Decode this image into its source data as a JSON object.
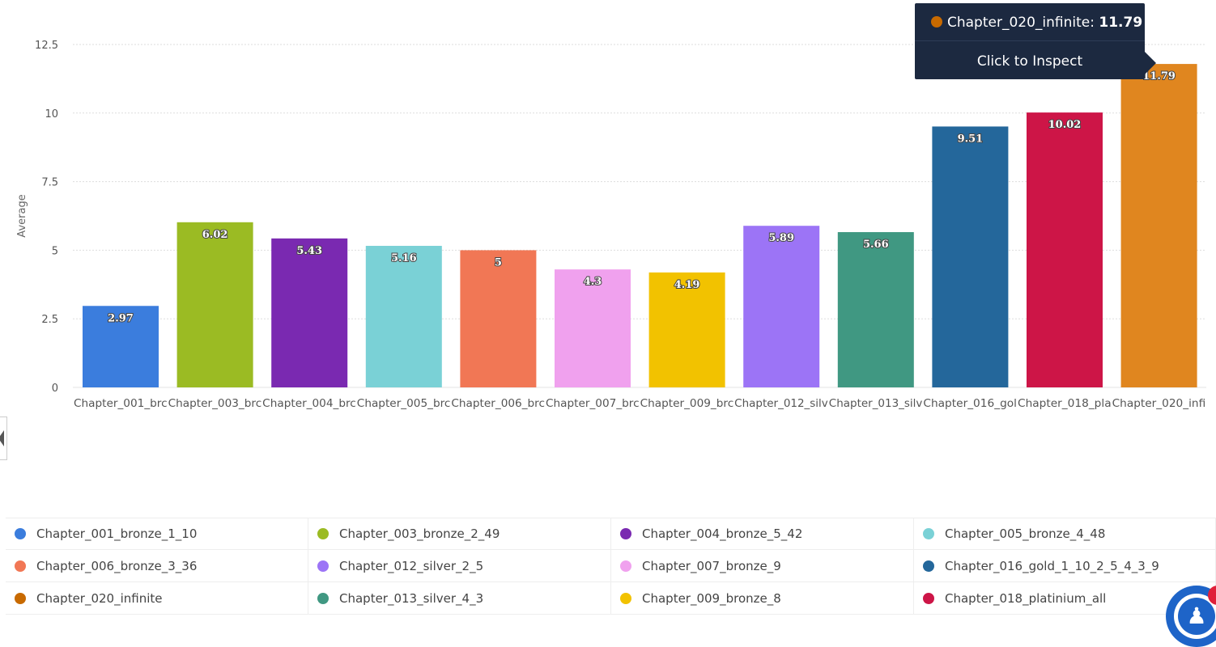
{
  "chart_data": {
    "type": "bar",
    "title": "",
    "xlabel": "",
    "ylabel": "Average",
    "ylim": [
      0,
      12.5
    ],
    "yticks": [
      "0",
      "2.5",
      "5",
      "7.5",
      "10",
      "12.5"
    ],
    "grid": true,
    "categories": [
      "Chapter_001_brc",
      "Chapter_003_brc",
      "Chapter_004_brc",
      "Chapter_005_brc",
      "Chapter_006_brc",
      "Chapter_007_brc",
      "Chapter_009_brc",
      "Chapter_012_silv",
      "Chapter_013_silv",
      "Chapter_016_gol",
      "Chapter_018_pla",
      "Chapter_020_infi"
    ],
    "values": [
      2.97,
      6.02,
      5.43,
      5.16,
      5,
      4.3,
      4.19,
      5.89,
      5.66,
      9.51,
      10.02,
      11.79
    ],
    "value_labels": [
      "2.97",
      "6.02",
      "5.43",
      "5.16",
      "5",
      "4.3",
      "4.19",
      "5.89",
      "5.66",
      "9.51",
      "10.02",
      "11.79"
    ],
    "colors": [
      "#3b7ddd",
      "#9bbb23",
      "#7a29b1",
      "#7ad1d6",
      "#f17755",
      "#f0a1ee",
      "#f2c200",
      "#9c74f6",
      "#409882",
      "#24679b",
      "#cd1547",
      "#e0861f"
    ],
    "legend_position": "bottom"
  },
  "tooltip": {
    "series": "Chapter_020_infinite:",
    "value": "11.79",
    "color": "#c86a00",
    "action": "Click to Inspect"
  },
  "legend": [
    {
      "label": "Chapter_001_bronze_1_10",
      "color": "#3b7ddd"
    },
    {
      "label": "Chapter_003_bronze_2_49",
      "color": "#9bbb23"
    },
    {
      "label": "Chapter_004_bronze_5_42",
      "color": "#7a29b1"
    },
    {
      "label": "Chapter_005_bronze_4_48",
      "color": "#7ad1d6"
    },
    {
      "label": "Chapter_006_bronze_3_36",
      "color": "#f17755"
    },
    {
      "label": "Chapter_012_silver_2_5",
      "color": "#9c74f6"
    },
    {
      "label": "Chapter_007_bronze_9",
      "color": "#f0a1ee"
    },
    {
      "label": "Chapter_016_gold_1_10_2_5_4_3_9",
      "color": "#24679b"
    },
    {
      "label": "Chapter_020_infinite",
      "color": "#c86a00"
    },
    {
      "label": "Chapter_013_silver_4_3",
      "color": "#409882"
    },
    {
      "label": "Chapter_009_bronze_8",
      "color": "#f2c200"
    },
    {
      "label": "Chapter_018_platinium_all",
      "color": "#cd1547"
    }
  ],
  "help_icon": "accessibility-icon"
}
